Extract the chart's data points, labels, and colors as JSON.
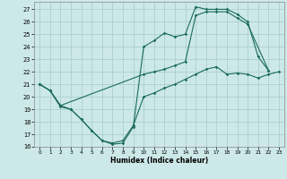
{
  "title": "",
  "xlabel": "Humidex (Indice chaleur)",
  "background_color": "#cde8e8",
  "grid_color": "#aacfcf",
  "line_color": "#1a6b5a",
  "xlim": [
    -0.5,
    23.5
  ],
  "ylim": [
    16,
    27.6
  ],
  "yticks": [
    16,
    17,
    18,
    19,
    20,
    21,
    22,
    23,
    24,
    25,
    26,
    27
  ],
  "xticks": [
    0,
    1,
    2,
    3,
    4,
    5,
    6,
    7,
    8,
    9,
    10,
    11,
    12,
    13,
    14,
    15,
    16,
    17,
    18,
    19,
    20,
    21,
    22,
    23
  ],
  "line1_x": [
    0,
    1,
    2,
    3,
    4,
    5,
    6,
    7,
    8,
    9,
    10,
    11,
    12,
    13,
    14,
    15,
    16,
    17,
    18,
    19,
    20,
    21,
    22
  ],
  "line1_y": [
    21.0,
    20.5,
    19.2,
    19.0,
    18.2,
    17.3,
    16.5,
    16.2,
    16.3,
    17.6,
    24.0,
    24.5,
    25.1,
    24.8,
    25.0,
    27.2,
    27.0,
    27.0,
    27.0,
    26.6,
    26.0,
    23.2,
    22.1
  ],
  "line2_x": [
    0,
    1,
    2,
    10,
    11,
    12,
    13,
    14,
    15,
    16,
    17,
    18,
    19,
    20,
    22
  ],
  "line2_y": [
    21.0,
    20.5,
    19.3,
    21.8,
    22.0,
    22.2,
    22.5,
    22.8,
    26.5,
    26.8,
    26.8,
    26.8,
    26.3,
    25.8,
    22.1
  ],
  "line3_x": [
    0,
    1,
    2,
    3,
    4,
    5,
    6,
    7,
    8,
    9,
    10,
    11,
    12,
    13,
    14,
    15,
    16,
    17,
    18,
    19,
    20,
    21,
    22,
    23
  ],
  "line3_y": [
    21.0,
    20.5,
    19.3,
    19.0,
    18.2,
    17.3,
    16.5,
    16.3,
    16.5,
    17.7,
    20.0,
    20.3,
    20.7,
    21.0,
    21.4,
    21.8,
    22.2,
    22.4,
    21.8,
    21.9,
    21.8,
    21.5,
    21.8,
    22.0
  ]
}
